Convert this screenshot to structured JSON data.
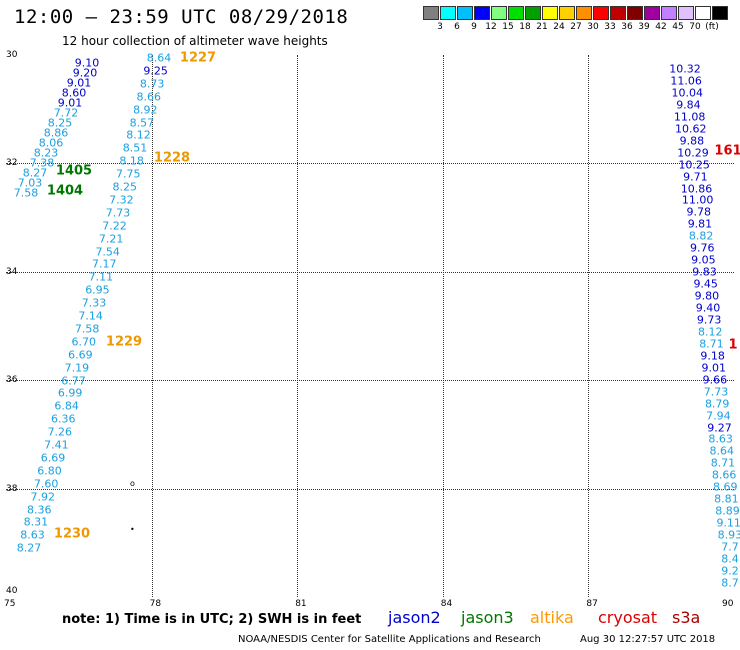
{
  "header": {
    "title": "12:00 – 23:59 UTC 08/29/2018",
    "subtitle": "12 hour collection of altimeter wave heights"
  },
  "colorbar": {
    "colors": [
      "#808080",
      "#00ffff",
      "#00bfff",
      "#0000ff",
      "#80ff80",
      "#00e000",
      "#00a000",
      "#ffff00",
      "#ffd000",
      "#ff9000",
      "#ff0000",
      "#c00000",
      "#800000",
      "#a000a0",
      "#c080ff",
      "#e0c0ff",
      "#ffffff",
      "#000000"
    ],
    "labels": [
      "3",
      "6",
      "9",
      "12",
      "15",
      "18",
      "21",
      "24",
      "27",
      "30",
      "33",
      "36",
      "39",
      "42",
      "45",
      "70",
      "(ft)"
    ]
  },
  "axes": {
    "lon_labels": [
      "75",
      "78",
      "81",
      "84",
      "87",
      "90"
    ],
    "lat_labels": [
      "30",
      "32",
      "34",
      "36",
      "38",
      "40"
    ]
  },
  "track_colors": {
    "jason2": "#0000cc",
    "jason3": "#007700",
    "altika": "#ff9900",
    "cryosat": "#dd0000",
    "s3a": "#aa0000",
    "light": "#1ba0e0",
    "time_orange": "#ee9900"
  },
  "tracks": {
    "track_a": {
      "top_blue": [
        "9.10",
        "9.20",
        "9.01",
        "8.60",
        "9.01"
      ],
      "values": [
        "7.72",
        "8.25",
        "8.86",
        "8.06",
        "8.23",
        "7.38",
        "8.27",
        "7.03",
        "7.58"
      ]
    },
    "track_b": {
      "values": [
        "8.64",
        "9.25",
        "8.73",
        "8.66",
        "8.92",
        "8.57",
        "8.12",
        "8.51",
        "8.18",
        "7.75",
        "8.25",
        "7.32",
        "7.73",
        "7.22",
        "7.21",
        "7.54",
        "7.17",
        "7.11",
        "6.95",
        "7.33",
        "7.14",
        "7.58",
        "6.70",
        "6.69",
        "7.19",
        "6.77",
        "6.99",
        "6.84",
        "6.36",
        "7.26",
        "7.41",
        "6.69",
        "6.80",
        "7.60",
        "7.92",
        "8.36",
        "8.31",
        "8.63",
        "8.27"
      ]
    },
    "track_c": {
      "values": [
        "10.32",
        "11.06",
        "10.04",
        "9.84",
        "11.08",
        "10.62",
        "9.88",
        "10.29",
        "10.25",
        "9.71",
        "10.86",
        "11.00",
        "9.78",
        "9.81",
        "8.82",
        "9.76",
        "9.05",
        "9.83",
        "9.45",
        "9.80",
        "9.40",
        "9.73",
        "8.12",
        "8.71",
        "9.18",
        "9.01",
        "9.66",
        "7.73",
        "8.79",
        "7.94",
        "9.27",
        "8.63",
        "8.64",
        "8.71",
        "8.66",
        "8.69",
        "8.81",
        "8.89",
        "9.11",
        "8.93",
        "7.7",
        "8.4",
        "9.2",
        "8.7"
      ]
    },
    "times": [
      "1227",
      "1228",
      "1229",
      "1230",
      "1405",
      "1404",
      "161",
      "1"
    ]
  },
  "note": "note:  1) Time is in UTC;  2) SWH is in feet",
  "legend": [
    "jason2",
    "jason3",
    "altika",
    "cryosat",
    "s3a"
  ],
  "credit": "NOAA/NESDIS Center for Satellite Applications and Research",
  "credit_time": "Aug 30 12:27:57 UTC 2018"
}
